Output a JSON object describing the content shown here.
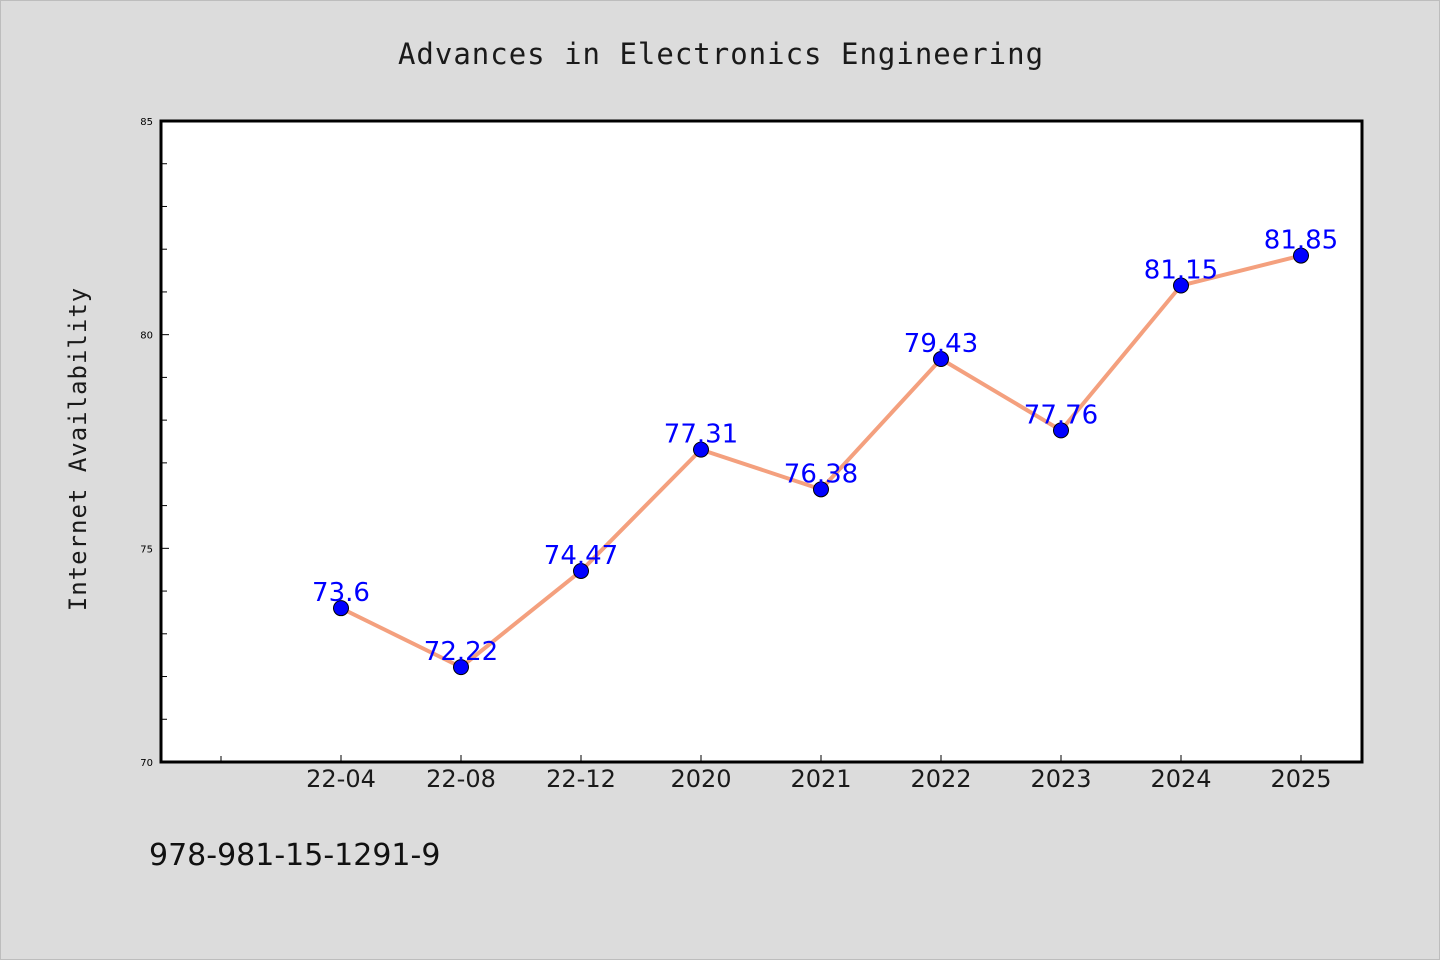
{
  "chart_data": {
    "type": "line",
    "title": "Advances in Electronics Engineering",
    "xlabel": "",
    "ylabel": "Internet Availability",
    "categories": [
      "22-04",
      "22-08",
      "22-12",
      "2020",
      "2021",
      "2022",
      "2023",
      "2024",
      "2025"
    ],
    "series": [
      {
        "values": [
          73.6,
          72.22,
          74.47,
          77.31,
          76.38,
          79.43,
          77.76,
          81.15,
          81.85
        ],
        "data_labels": [
          "73.6",
          "72.22",
          "74.47",
          "77.31",
          "76.38",
          "79.43",
          "77.76",
          "81.15",
          "81.85"
        ]
      }
    ],
    "ylim": [
      70,
      85
    ],
    "yticks": [
      70,
      75,
      80,
      85
    ],
    "ytick_labels": [
      "70",
      "75",
      "80",
      "85"
    ],
    "grid": false,
    "colors": {
      "line": "#f4a07e",
      "marker": "#0000ff",
      "data_label": "#0000ff",
      "page_background": "#dcdcdc",
      "plot_background": "#ffffff"
    }
  },
  "footer": {
    "isbn": "978-981-15-1291-9"
  }
}
